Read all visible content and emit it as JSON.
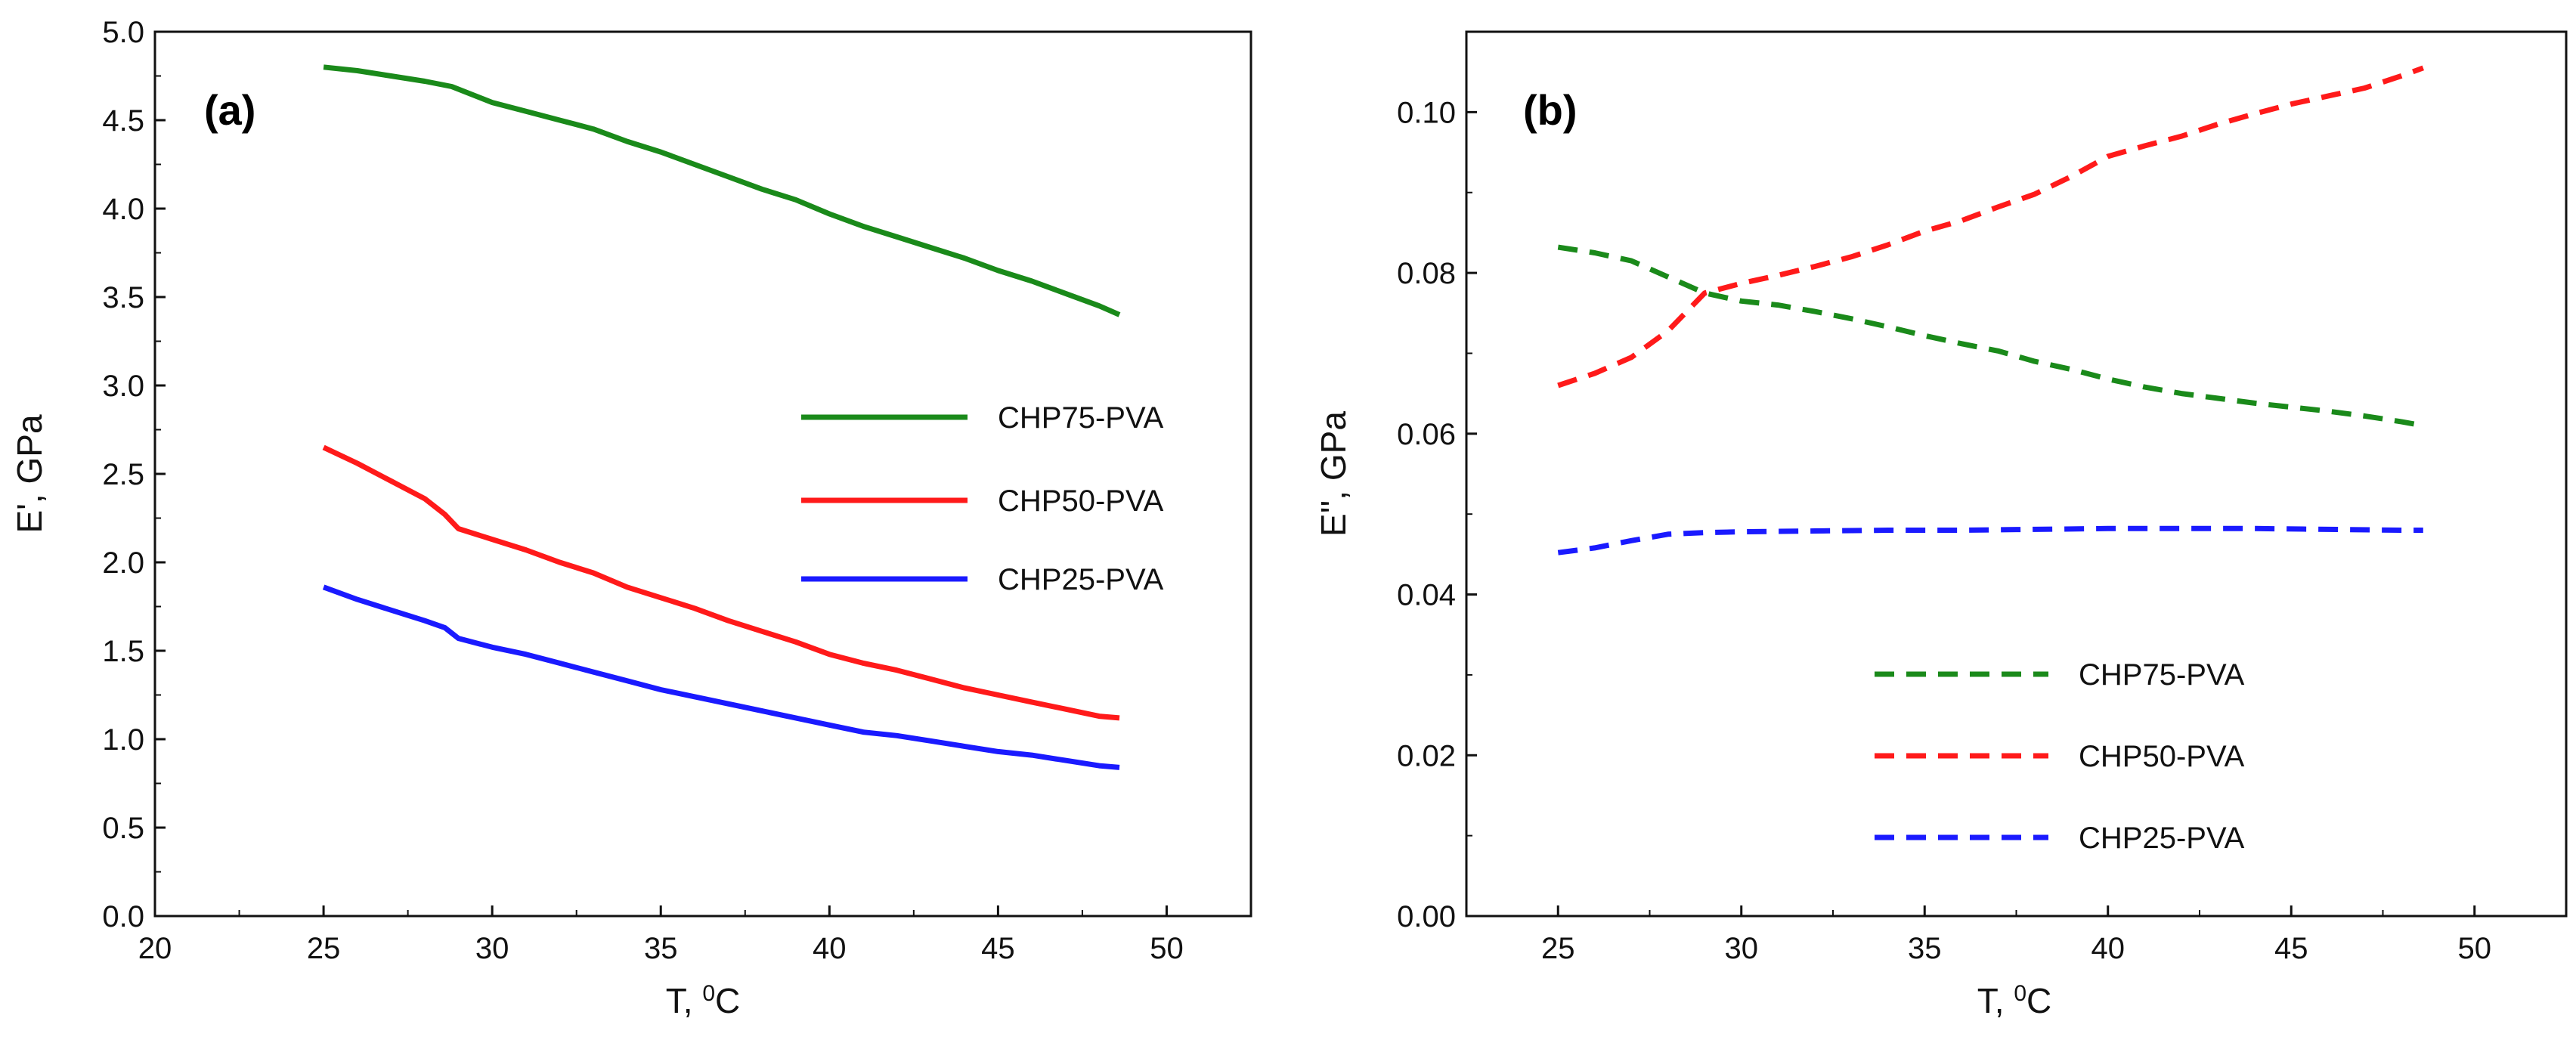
{
  "chart_data": [
    {
      "type": "line",
      "panel_label": "(a)",
      "xlabel": "T, ",
      "xlabel_sup": "0",
      "xlabel_unit": "C",
      "ylabel": "E', GPa",
      "xlim": [
        20,
        52.5
      ],
      "ylim": [
        0,
        5.0
      ],
      "xticks": [
        "20",
        "25",
        "30",
        "35",
        "40",
        "45",
        "50"
      ],
      "yticks": [
        "0.0",
        "0.5",
        "1.0",
        "1.5",
        "2.0",
        "2.5",
        "3.0",
        "3.5",
        "4.0",
        "4.5",
        "5.0"
      ],
      "legend_position": "right",
      "series": [
        {
          "name": "CHP75-PVA",
          "color": "#1a8a1a",
          "style": "solid",
          "x": [
            25,
            26,
            27,
            28,
            28.8,
            30,
            31,
            32,
            33,
            34,
            35,
            36,
            37,
            38,
            39,
            40,
            41,
            42,
            43,
            44,
            45,
            46,
            47,
            48,
            48.6
          ],
          "y": [
            4.8,
            4.78,
            4.75,
            4.72,
            4.69,
            4.6,
            4.55,
            4.5,
            4.45,
            4.38,
            4.32,
            4.25,
            4.18,
            4.11,
            4.05,
            3.97,
            3.9,
            3.84,
            3.78,
            3.72,
            3.65,
            3.59,
            3.52,
            3.45,
            3.4
          ]
        },
        {
          "name": "CHP50-PVA",
          "color": "#ff1a1a",
          "style": "solid",
          "x": [
            25,
            26,
            27,
            28,
            28.6,
            29,
            30,
            31,
            32,
            33,
            34,
            35,
            36,
            37,
            38,
            39,
            40,
            41,
            42,
            43,
            44,
            45,
            46,
            47,
            48,
            48.6
          ],
          "y": [
            2.65,
            2.56,
            2.46,
            2.36,
            2.27,
            2.19,
            2.13,
            2.07,
            2.0,
            1.94,
            1.86,
            1.8,
            1.74,
            1.67,
            1.61,
            1.55,
            1.48,
            1.43,
            1.39,
            1.34,
            1.29,
            1.25,
            1.21,
            1.17,
            1.13,
            1.12
          ]
        },
        {
          "name": "CHP25-PVA",
          "color": "#1a1aff",
          "style": "solid",
          "x": [
            25,
            26,
            27,
            28,
            28.6,
            29,
            30,
            31,
            32,
            33,
            34,
            35,
            36,
            37,
            38,
            39,
            40,
            41,
            42,
            43,
            44,
            45,
            46,
            47,
            48,
            48.6
          ],
          "y": [
            1.86,
            1.79,
            1.73,
            1.67,
            1.63,
            1.57,
            1.52,
            1.48,
            1.43,
            1.38,
            1.33,
            1.28,
            1.24,
            1.2,
            1.16,
            1.12,
            1.08,
            1.04,
            1.02,
            0.99,
            0.96,
            0.93,
            0.91,
            0.88,
            0.85,
            0.84
          ]
        }
      ]
    },
    {
      "type": "line",
      "panel_label": "(b)",
      "xlabel": "T, ",
      "xlabel_sup": "0",
      "xlabel_unit": "C",
      "ylabel": "E'', GPa",
      "xlim": [
        22.5,
        52.5
      ],
      "ylim": [
        0,
        0.11
      ],
      "xticks": [
        "25",
        "30",
        "35",
        "40",
        "45",
        "50"
      ],
      "yticks": [
        "0.00",
        "0.02",
        "0.04",
        "0.06",
        "0.08",
        "0.10"
      ],
      "legend_position": "bottom-center",
      "series": [
        {
          "name": "CHP75-PVA",
          "color": "#1a8a1a",
          "style": "dashed",
          "x": [
            25,
            26,
            27,
            28,
            29,
            30,
            31,
            32,
            33,
            34,
            35,
            36,
            37,
            38,
            39,
            40,
            41,
            42,
            43,
            44,
            45,
            46,
            47,
            48,
            48.6
          ],
          "y": [
            0.0832,
            0.0825,
            0.0815,
            0.0795,
            0.0775,
            0.0765,
            0.076,
            0.0752,
            0.0743,
            0.0733,
            0.0722,
            0.0712,
            0.0703,
            0.069,
            0.068,
            0.0668,
            0.0658,
            0.065,
            0.0644,
            0.0638,
            0.0633,
            0.0628,
            0.0622,
            0.0615,
            0.061
          ]
        },
        {
          "name": "CHP50-PVA",
          "color": "#ff1a1a",
          "style": "dashed",
          "x": [
            25,
            26,
            27,
            28,
            29,
            30,
            31,
            32,
            33,
            34,
            35,
            36,
            37,
            38,
            39,
            40,
            41,
            42,
            43,
            44,
            45,
            46,
            47,
            48,
            48.6
          ],
          "y": [
            0.066,
            0.0675,
            0.0695,
            0.0728,
            0.0775,
            0.0787,
            0.0797,
            0.0808,
            0.082,
            0.0835,
            0.0852,
            0.0865,
            0.0882,
            0.0898,
            0.092,
            0.0945,
            0.0958,
            0.097,
            0.0985,
            0.0998,
            0.101,
            0.102,
            0.103,
            0.1045,
            0.1055
          ]
        },
        {
          "name": "CHP25-PVA",
          "color": "#1a1aff",
          "style": "dashed",
          "x": [
            25,
            26,
            27,
            28,
            29,
            30,
            32,
            34,
            36,
            38,
            40,
            42,
            44,
            46,
            48,
            48.6
          ],
          "y": [
            0.0452,
            0.0458,
            0.0467,
            0.0475,
            0.0477,
            0.0478,
            0.0479,
            0.048,
            0.048,
            0.0481,
            0.0482,
            0.0482,
            0.0482,
            0.0481,
            0.048,
            0.048
          ]
        }
      ]
    }
  ]
}
